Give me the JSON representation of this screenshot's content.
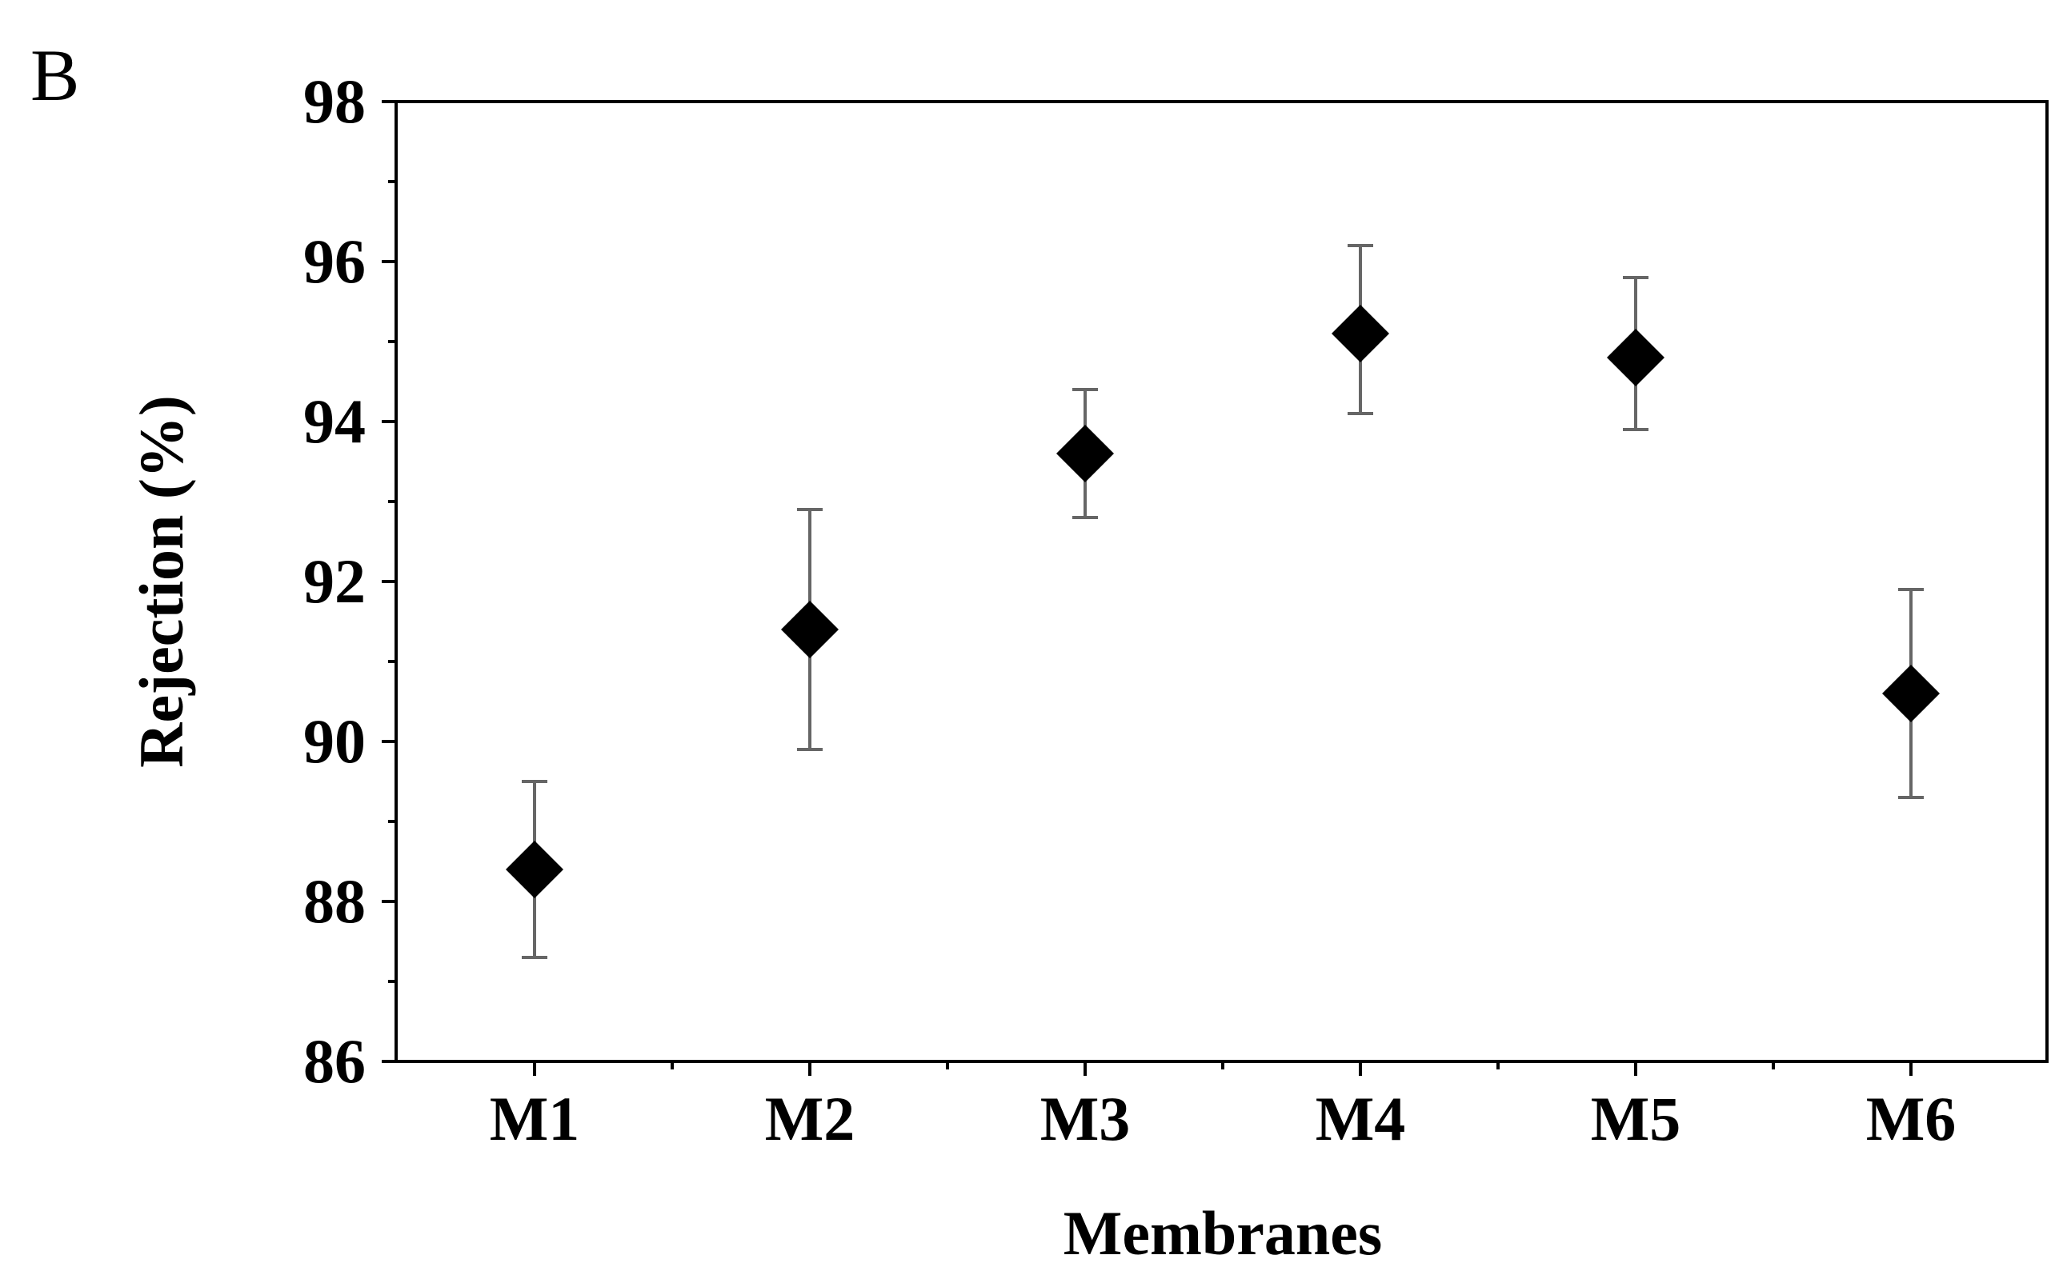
{
  "panel_label": "B",
  "chart_data": {
    "type": "scatter",
    "xlabel": "Membranes",
    "ylabel": "Rejection (%)",
    "categories": [
      "M1",
      "M2",
      "M3",
      "M4",
      "M5",
      "M6"
    ],
    "values": [
      88.4,
      91.4,
      93.6,
      95.1,
      94.8,
      90.6
    ],
    "error_upper": [
      89.5,
      92.9,
      94.4,
      96.2,
      95.8,
      91.9
    ],
    "error_lower": [
      87.3,
      89.9,
      92.8,
      94.1,
      93.9,
      89.3
    ],
    "ylim": [
      86,
      98
    ],
    "yticks": [
      "86",
      "88",
      "90",
      "92",
      "94",
      "96",
      "98"
    ],
    "marker": "diamond",
    "marker_color": "#000000",
    "error_bar_color": "#666666",
    "grid": false,
    "legend": "none"
  }
}
